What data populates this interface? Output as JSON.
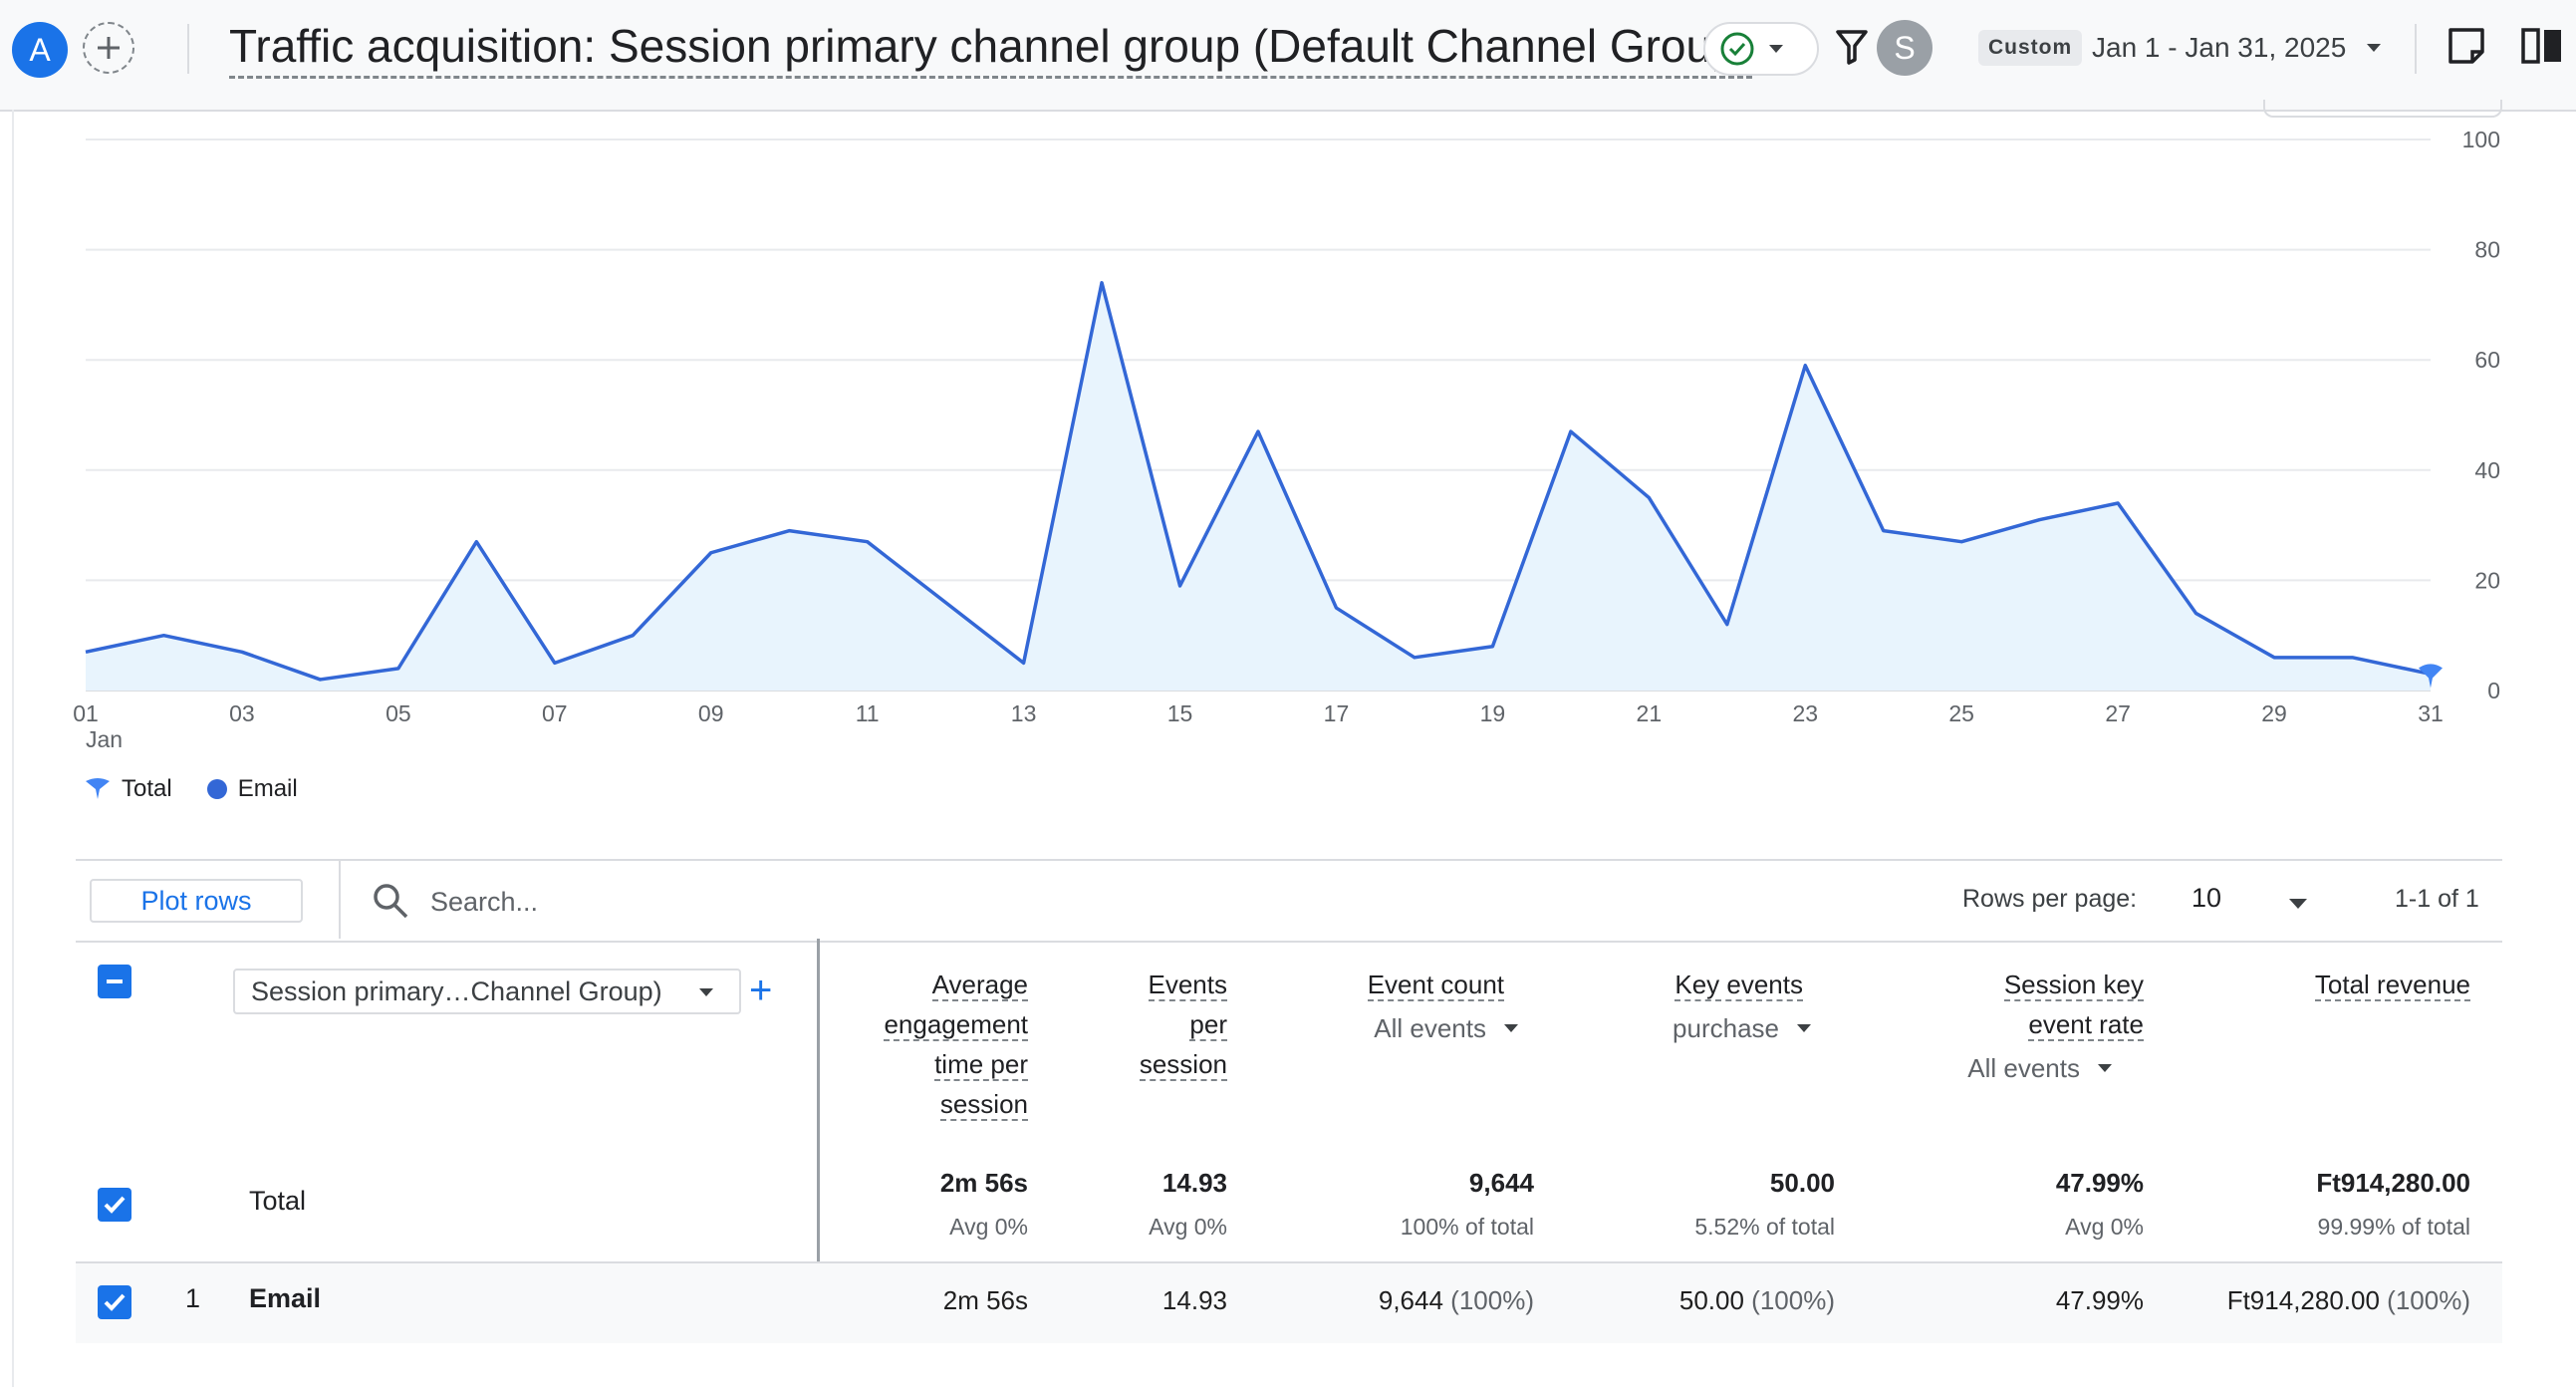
{
  "header": {
    "account_initial": "A",
    "user_initial": "S",
    "title": "Traffic acquisition: Session primary channel group (Default Channel Group)",
    "date_chip": "Custom",
    "date_range": "Jan 1 - Jan 31, 2025",
    "icons": [
      "add-comparison-icon",
      "check-circle-icon",
      "filter-icon",
      "caret-down-icon",
      "notes-icon",
      "compare-columns-icon"
    ],
    "accent_color": "#1a73e8",
    "status_color": "#188038"
  },
  "chart_data": {
    "type": "area",
    "x_ticks": [
      "01",
      "03",
      "05",
      "07",
      "09",
      "11",
      "13",
      "15",
      "17",
      "19",
      "21",
      "23",
      "25",
      "27",
      "29",
      "31"
    ],
    "x_tick_sublabel": "Jan",
    "y_ticks": [
      "100",
      "80",
      "60",
      "40",
      "20",
      "0"
    ],
    "ylim": [
      0,
      100
    ],
    "y_axis_side": "right",
    "grid": true,
    "series": [
      {
        "name": "Total",
        "color": "#3367d6",
        "values": [
          7,
          10,
          7,
          2,
          4,
          27,
          5,
          10,
          25,
          29,
          27,
          16,
          5,
          74,
          19,
          47,
          15,
          6,
          8,
          47,
          35,
          12,
          59,
          29,
          27,
          31,
          34,
          14,
          6,
          6,
          3
        ]
      }
    ],
    "legend": [
      {
        "label": "Total",
        "icon": "total-marker-icon",
        "color": "#4285f4"
      },
      {
        "label": "Email",
        "icon": "dot-icon",
        "color": "#3367d6"
      }
    ],
    "legend_position": "bottom-left"
  },
  "toolbar": {
    "plot_rows": "Plot rows",
    "search_placeholder": "Search...",
    "rows_per_page_label": "Rows per page:",
    "rows_per_page": "10",
    "pager": "1-1 of 1"
  },
  "table": {
    "dimension_label": "Session primary…Channel Group)",
    "add_dimension": "+",
    "columns": [
      {
        "lines": [
          "Average",
          "engagement",
          "time per",
          "session"
        ],
        "sub": ""
      },
      {
        "lines": [
          "Events",
          "per",
          "session"
        ],
        "sub": ""
      },
      {
        "lines": [
          "Event count"
        ],
        "sub": "All events"
      },
      {
        "lines": [
          "Key events"
        ],
        "sub": "purchase"
      },
      {
        "lines": [
          "Session key",
          "event rate"
        ],
        "sub": "All events"
      },
      {
        "lines": [
          "Total revenue"
        ],
        "sub": ""
      }
    ],
    "total": {
      "label": "Total",
      "values": [
        "2m 56s",
        "14.93",
        "9,644",
        "50.00",
        "47.99%",
        "Ft914,280.00"
      ],
      "subs": [
        "Avg 0%",
        "Avg 0%",
        "100% of total",
        "5.52% of total",
        "Avg 0%",
        "99.99% of total"
      ]
    },
    "rows": [
      {
        "index": "1",
        "name": "Email",
        "values": [
          "2m 56s",
          "14.93",
          "9,644",
          "50.00",
          "47.99%",
          "Ft914,280.00"
        ],
        "pcts": [
          "",
          "",
          "(100%)",
          "(100%)",
          "",
          "(100%)"
        ]
      }
    ]
  }
}
